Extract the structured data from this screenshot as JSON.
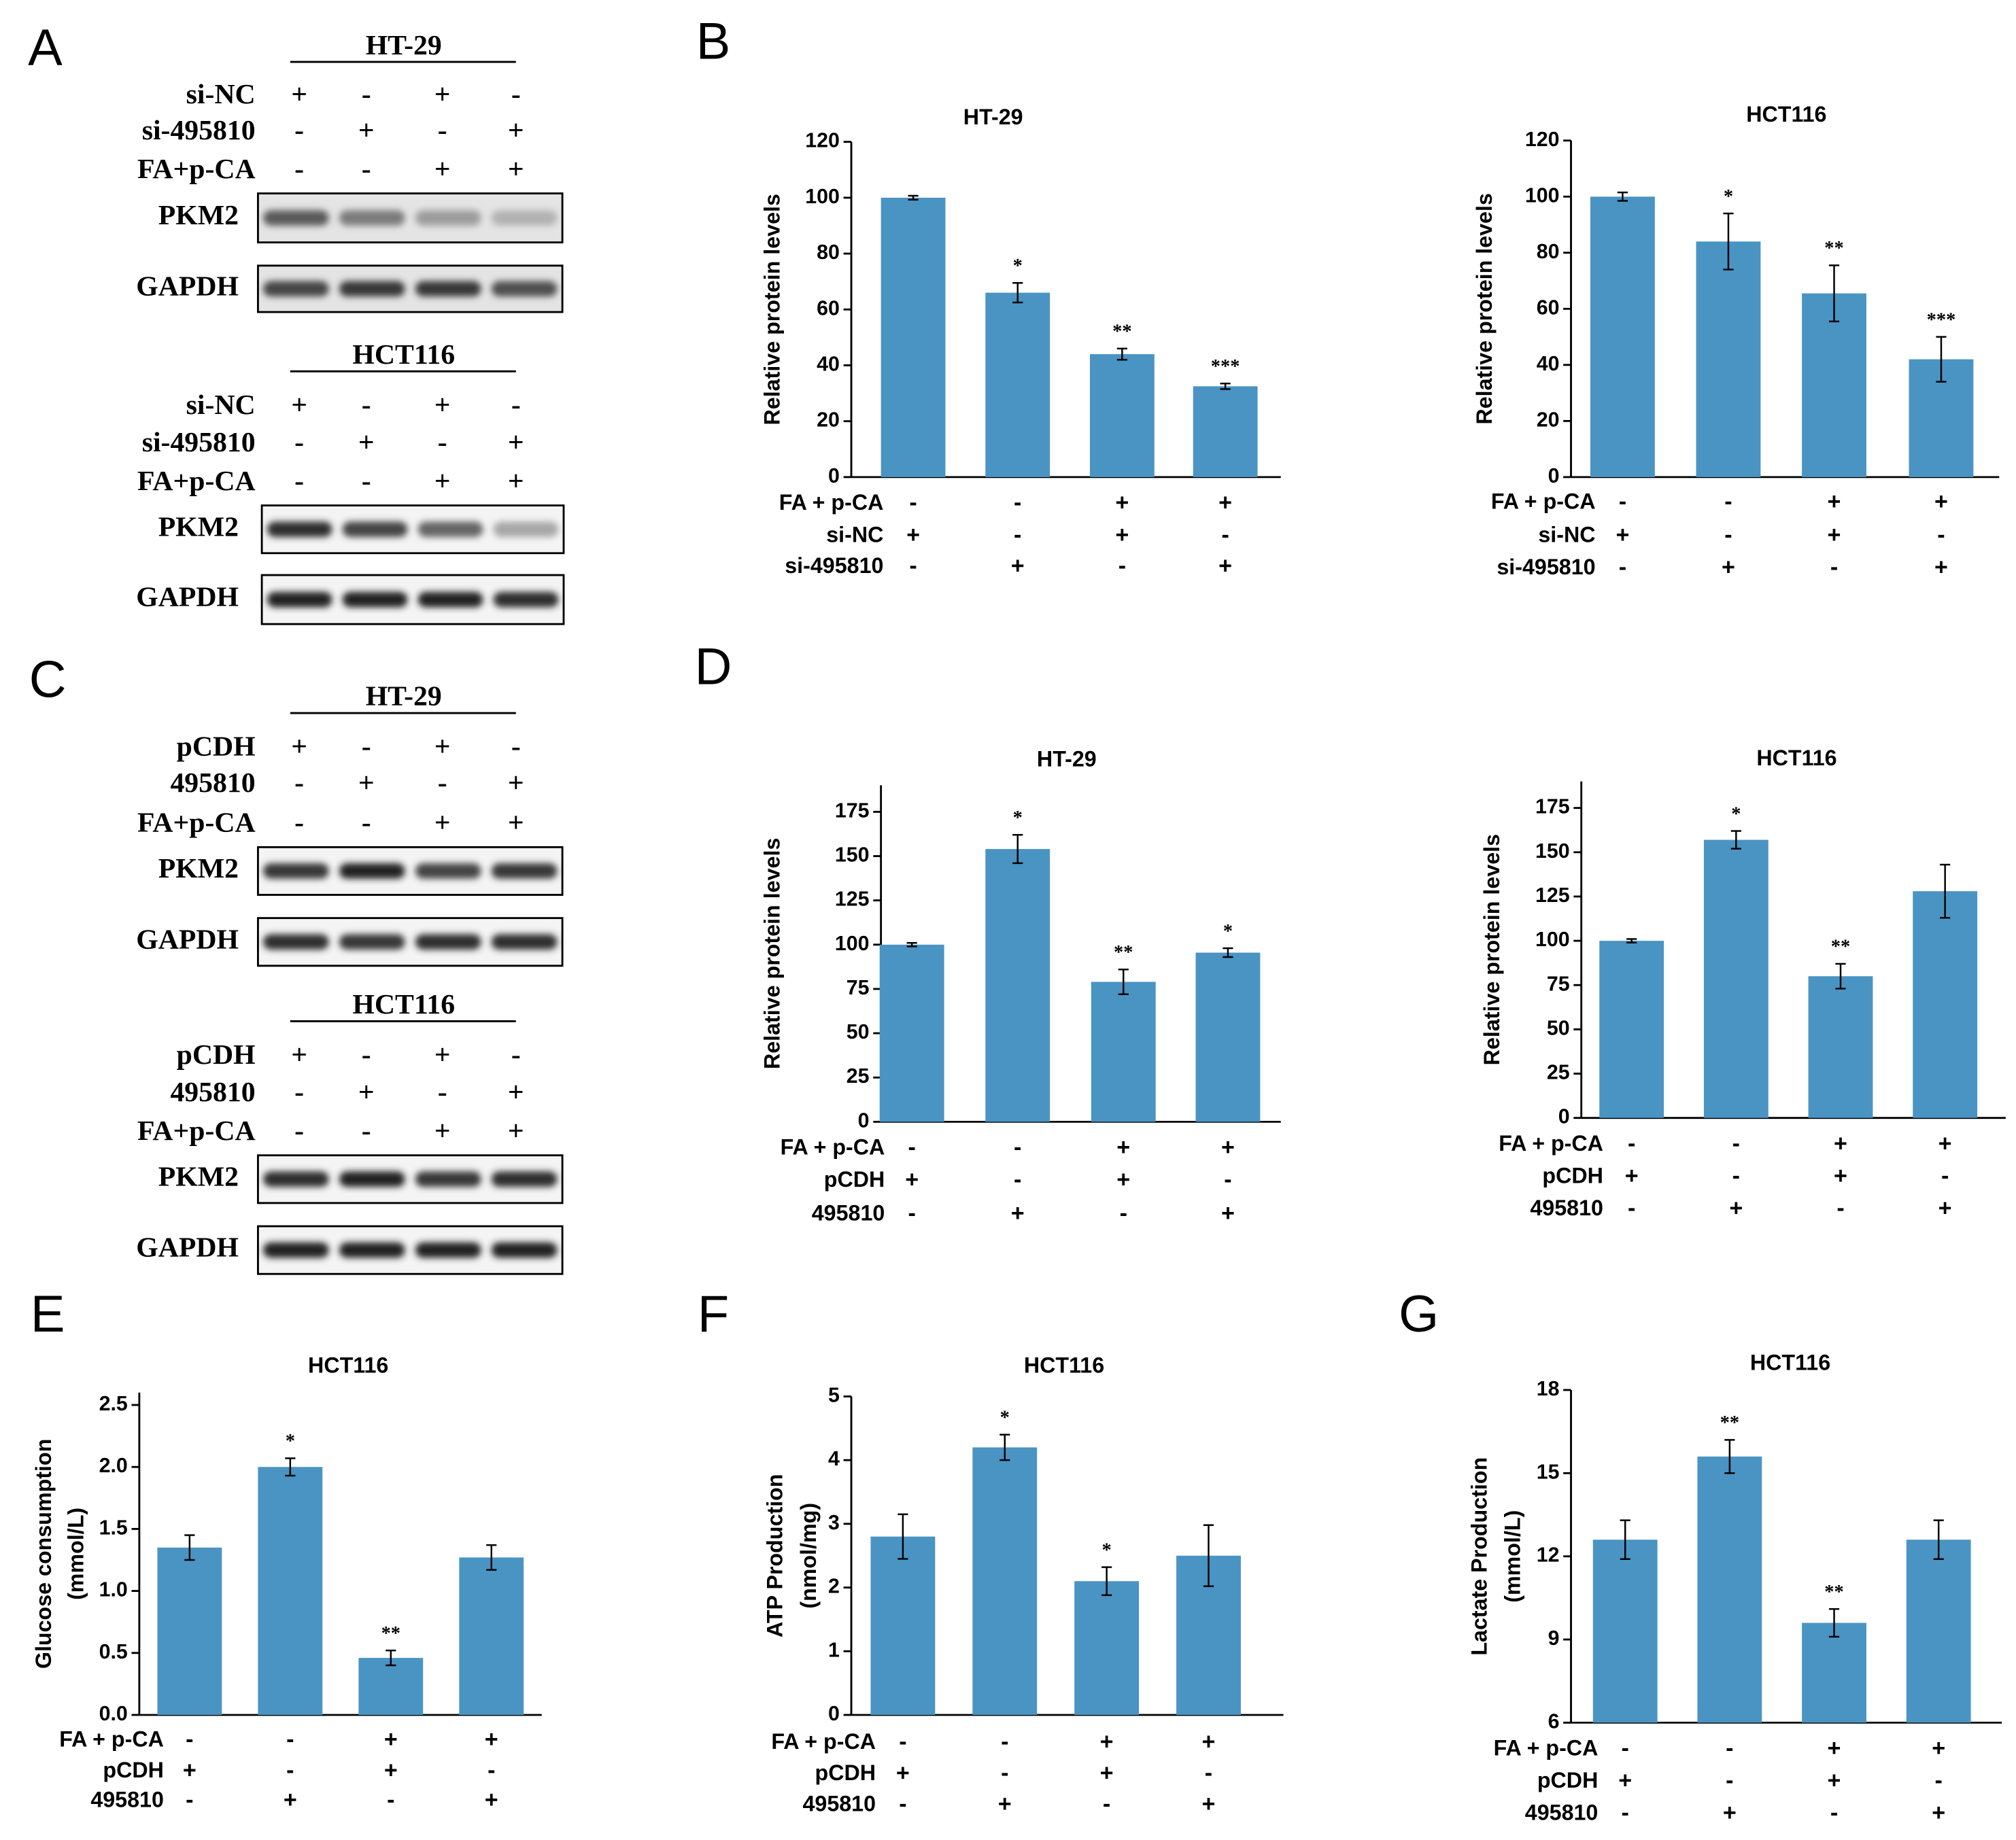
{
  "panels": [
    "A",
    "B",
    "C",
    "D",
    "E",
    "F",
    "G"
  ],
  "blots": [
    {
      "title": "HT-29",
      "rows": [
        {
          "name": "si-NC",
          "signs": [
            "+",
            "-",
            "+",
            "-"
          ]
        },
        {
          "name": "si-495810",
          "signs": [
            "-",
            "+",
            "-",
            "+"
          ]
        },
        {
          "name": "FA+p-CA",
          "signs": [
            "-",
            "-",
            "+",
            "+"
          ]
        }
      ],
      "bands": [
        "PKM2",
        "GAPDH"
      ]
    },
    {
      "title": "HCT116",
      "rows": [
        {
          "name": "si-NC",
          "signs": [
            "+",
            "-",
            "+",
            "-"
          ]
        },
        {
          "name": "si-495810",
          "signs": [
            "-",
            "+",
            "-",
            "+"
          ]
        },
        {
          "name": "FA+p-CA",
          "signs": [
            "-",
            "-",
            "+",
            "+"
          ]
        }
      ],
      "bands": [
        "PKM2",
        "GAPDH"
      ]
    },
    {
      "title": "HT-29",
      "rows": [
        {
          "name": "pCDH",
          "signs": [
            "+",
            "-",
            "+",
            "-"
          ]
        },
        {
          "name": "495810",
          "signs": [
            "-",
            "+",
            "-",
            "+"
          ]
        },
        {
          "name": "FA+p-CA",
          "signs": [
            "-",
            "-",
            "+",
            "+"
          ]
        }
      ],
      "bands": [
        "PKM2",
        "GAPDH"
      ]
    },
    {
      "title": "HCT116",
      "rows": [
        {
          "name": "pCDH",
          "signs": [
            "+",
            "-",
            "+",
            "-"
          ]
        },
        {
          "name": "495810",
          "signs": [
            "-",
            "+",
            "-",
            "+"
          ]
        },
        {
          "name": "FA+p-CA",
          "signs": [
            "-",
            "-",
            "+",
            "+"
          ]
        }
      ],
      "bands": [
        "PKM2",
        "GAPDH"
      ]
    }
  ],
  "chart_data": [
    {
      "type": "bar",
      "title": "HT-29",
      "ylabel": [
        "Relative protein levels"
      ],
      "color": "#4a94c3",
      "values": [
        100,
        66,
        44,
        32.5
      ],
      "errors": [
        0.7,
        3.5,
        2,
        1
      ],
      "significance": [
        null,
        "*",
        "**",
        "***"
      ],
      "ylim": [
        0,
        120
      ],
      "yticks": [
        0,
        20,
        40,
        60,
        80,
        100,
        120
      ],
      "conditions": [
        {
          "name": "FA + p-CA",
          "signs": [
            "-",
            "-",
            "+",
            "+"
          ]
        },
        {
          "name": "si-NC",
          "signs": [
            "+",
            "-",
            "+",
            "-"
          ]
        },
        {
          "name": "si-495810",
          "signs": [
            "-",
            "+",
            "-",
            "+"
          ]
        }
      ]
    },
    {
      "type": "bar",
      "title": "HCT116",
      "ylabel": [
        "Relative protein levels"
      ],
      "color": "#4a94c3",
      "values": [
        100,
        84,
        65.5,
        42
      ],
      "errors": [
        1.5,
        10,
        10,
        8
      ],
      "significance": [
        null,
        "*",
        "**",
        "***"
      ],
      "ylim": [
        0,
        120
      ],
      "yticks": [
        0,
        20,
        40,
        60,
        80,
        100,
        120
      ],
      "conditions": [
        {
          "name": "FA + p-CA",
          "signs": [
            "-",
            "-",
            "+",
            "+"
          ]
        },
        {
          "name": "si-NC",
          "signs": [
            "+",
            "-",
            "+",
            "-"
          ]
        },
        {
          "name": "si-495810",
          "signs": [
            "-",
            "+",
            "-",
            "+"
          ]
        }
      ]
    },
    {
      "type": "bar",
      "title": "HT-29",
      "ylabel": [
        "Relative protein levels"
      ],
      "color": "#4a94c3",
      "values": [
        100,
        154,
        79,
        95.5
      ],
      "errors": [
        1,
        8,
        7,
        2.5
      ],
      "significance": [
        null,
        "*",
        "**",
        "*"
      ],
      "ylim": [
        0,
        190
      ],
      "yticks": [
        0,
        25,
        50,
        75,
        100,
        125,
        150,
        175
      ],
      "conditions": [
        {
          "name": "FA + p-CA",
          "signs": [
            "-",
            "-",
            "+",
            "+"
          ]
        },
        {
          "name": "pCDH",
          "signs": [
            "+",
            "-",
            "+",
            "-"
          ]
        },
        {
          "name": "495810",
          "signs": [
            "-",
            "+",
            "-",
            "+"
          ]
        }
      ]
    },
    {
      "type": "bar",
      "title": "HCT116",
      "ylabel": [
        "Relative protein levels"
      ],
      "color": "#4a94c3",
      "values": [
        100,
        157,
        80,
        128
      ],
      "errors": [
        1,
        5,
        7,
        15
      ],
      "significance": [
        null,
        "*",
        "**",
        null
      ],
      "ylim": [
        0,
        190
      ],
      "yticks": [
        0,
        25,
        50,
        75,
        100,
        125,
        150,
        175
      ],
      "conditions": [
        {
          "name": "FA + p-CA",
          "signs": [
            "-",
            "-",
            "+",
            "+"
          ]
        },
        {
          "name": "pCDH",
          "signs": [
            "+",
            "-",
            "+",
            "-"
          ]
        },
        {
          "name": "495810",
          "signs": [
            "-",
            "+",
            "-",
            "+"
          ]
        }
      ]
    },
    {
      "type": "bar",
      "title": "HCT116",
      "ylabel": [
        "Glucose consumption",
        "(mmol/L)"
      ],
      "color": "#4a94c3",
      "values": [
        1.35,
        2.0,
        0.46,
        1.27
      ],
      "errors": [
        0.1,
        0.07,
        0.06,
        0.1
      ],
      "significance": [
        null,
        "*",
        "**",
        null
      ],
      "ylim": [
        0,
        2.6
      ],
      "yticks": [
        {
          "value": 0,
          "label": "0.0"
        },
        0.5,
        {
          "value": 1,
          "label": "1.0"
        },
        1.5,
        {
          "value": 2,
          "label": "2.0"
        },
        2.5
      ],
      "conditions": [
        {
          "name": "FA + p-CA",
          "signs": [
            "-",
            "-",
            "+",
            "+"
          ]
        },
        {
          "name": "pCDH",
          "signs": [
            "+",
            "-",
            "+",
            "-"
          ]
        },
        {
          "name": "495810",
          "signs": [
            "-",
            "+",
            "-",
            "+"
          ]
        }
      ]
    },
    {
      "type": "bar",
      "title": "HCT116",
      "ylabel": [
        "ATP Production",
        "(nmol/mg)"
      ],
      "color": "#4a94c3",
      "values": [
        2.8,
        4.2,
        2.1,
        2.5
      ],
      "errors": [
        0.35,
        0.2,
        0.22,
        0.48
      ],
      "significance": [
        null,
        "*",
        "*",
        null
      ],
      "ylim": [
        0,
        5
      ],
      "yticks": [
        0,
        1,
        2,
        3,
        4,
        5
      ],
      "conditions": [
        {
          "name": "FA + p-CA",
          "signs": [
            "-",
            "-",
            "+",
            "+"
          ]
        },
        {
          "name": "pCDH",
          "signs": [
            "+",
            "-",
            "+",
            "-"
          ]
        },
        {
          "name": "495810",
          "signs": [
            "-",
            "+",
            "-",
            "+"
          ]
        }
      ]
    },
    {
      "type": "bar",
      "title": "HCT116",
      "ylabel": [
        "Lactate Production",
        "(mmol/L)"
      ],
      "color": "#4a94c3",
      "values": [
        12.6,
        15.6,
        9.6,
        12.6
      ],
      "errors": [
        0.7,
        0.6,
        0.5,
        0.7
      ],
      "significance": [
        null,
        "**",
        "**",
        null
      ],
      "ylim": [
        6,
        18
      ],
      "yticks": [
        6,
        9,
        12,
        15,
        18
      ],
      "conditions": [
        {
          "name": "FA + p-CA",
          "signs": [
            "-",
            "-",
            "+",
            "+"
          ]
        },
        {
          "name": "pCDH",
          "signs": [
            "+",
            "-",
            "+",
            "-"
          ]
        },
        {
          "name": "495810",
          "signs": [
            "-",
            "+",
            "-",
            "+"
          ]
        }
      ]
    }
  ]
}
